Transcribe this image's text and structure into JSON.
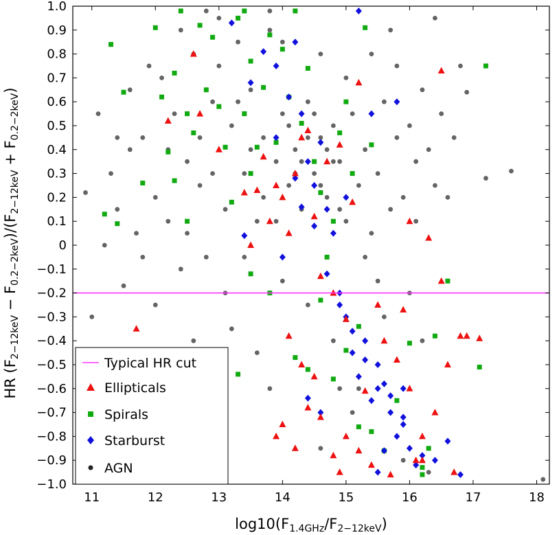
{
  "chart_data": {
    "type": "scatter",
    "xlabel_parts": [
      "log10(F",
      "1.4GHz",
      "/F",
      "2−12keV",
      ")"
    ],
    "ylabel_parts": [
      "HR (F",
      "2−12keV",
      " − F",
      "0.2−2keV",
      ")/(F",
      "2−12keV",
      " + F",
      "0.2−2keV",
      ")"
    ],
    "xlim": [
      10.7,
      18.2
    ],
    "ylim": [
      -1.0,
      1.0
    ],
    "xticks": [
      11,
      12,
      13,
      14,
      15,
      16,
      17,
      18
    ],
    "yticks": [
      1.0,
      0.9,
      0.8,
      0.7,
      0.6,
      0.5,
      0.4,
      0.3,
      0.2,
      0.1,
      0,
      -0.1,
      -0.2,
      -0.3,
      -0.4,
      -0.5,
      -0.6,
      -0.7,
      -0.8,
      -0.9,
      -1.0
    ],
    "ytick_labels": [
      "1.0",
      "0.9",
      "0.8",
      "0.7",
      "0.6",
      "0.5",
      "0.4",
      "0.3",
      "0.2",
      "0.1",
      "0",
      "−0.1",
      "−0.2",
      "−0.3",
      "−0.4",
      "−0.5",
      "−0.6",
      "−0.7",
      "−0.8",
      "−0.9",
      "−1.0"
    ],
    "grid": false,
    "legend_position": "lower-left",
    "hr_cut": {
      "name": "Typical HR cut",
      "y": -0.2,
      "color": "#ff33ff"
    },
    "series": [
      {
        "name": "Ellipticals",
        "marker": "triangle",
        "color": "#ee1111",
        "points": [
          [
            11.7,
            -0.35
          ],
          [
            12.2,
            0.52
          ],
          [
            12.5,
            -0.68
          ],
          [
            12.6,
            0.8
          ],
          [
            12.7,
            0.55
          ],
          [
            13.0,
            0.4
          ],
          [
            13.4,
            0.22
          ],
          [
            13.5,
            0.0
          ],
          [
            13.6,
            0.23
          ],
          [
            13.7,
            0.37
          ],
          [
            13.8,
            0.1
          ],
          [
            13.9,
            0.25
          ],
          [
            14.0,
            0.2
          ],
          [
            14.1,
            0.05
          ],
          [
            14.2,
            0.3
          ],
          [
            14.3,
            0.45
          ],
          [
            14.4,
            0.48
          ],
          [
            14.5,
            0.12
          ],
          [
            14.6,
            -0.13
          ],
          [
            14.7,
            0.35
          ],
          [
            14.8,
            -0.2
          ],
          [
            14.9,
            0.42
          ],
          [
            15.0,
            -0.31
          ],
          [
            15.1,
            0.18
          ],
          [
            15.2,
            0.68
          ],
          [
            14.1,
            -0.38
          ],
          [
            14.3,
            -0.5
          ],
          [
            14.5,
            -0.55
          ],
          [
            14.6,
            -0.72
          ],
          [
            14.8,
            -0.88
          ],
          [
            14.9,
            -0.95
          ],
          [
            15.0,
            -0.8
          ],
          [
            15.2,
            -0.86
          ],
          [
            15.3,
            -0.61
          ],
          [
            15.4,
            -0.92
          ],
          [
            15.6,
            -0.4
          ],
          [
            15.7,
            -0.96
          ],
          [
            15.8,
            -0.48
          ],
          [
            15.9,
            -0.27
          ],
          [
            16.0,
            -0.6
          ],
          [
            16.1,
            -0.9
          ],
          [
            16.2,
            -0.8
          ],
          [
            16.3,
            0.03
          ],
          [
            16.4,
            -0.7
          ],
          [
            16.5,
            -0.15
          ],
          [
            16.6,
            -0.5
          ],
          [
            16.8,
            -0.38
          ],
          [
            16.5,
            0.73
          ],
          [
            16.2,
            -0.9
          ],
          [
            14.0,
            -0.75
          ],
          [
            14.2,
            -0.85
          ],
          [
            13.9,
            -0.8
          ],
          [
            14.4,
            -0.68
          ],
          [
            16.0,
            0.1
          ],
          [
            16.7,
            -0.95
          ],
          [
            17.1,
            -0.39
          ],
          [
            16.9,
            -0.38
          ],
          [
            15.5,
            -0.25
          ]
        ]
      },
      {
        "name": "Spirals",
        "marker": "square",
        "color": "#11aa11",
        "points": [
          [
            11.2,
            0.13
          ],
          [
            11.3,
            0.84
          ],
          [
            11.4,
            0.09
          ],
          [
            11.5,
            0.64
          ],
          [
            11.8,
            0.26
          ],
          [
            12.0,
            0.91
          ],
          [
            12.1,
            0.62
          ],
          [
            12.2,
            0.39
          ],
          [
            12.3,
            0.72
          ],
          [
            12.4,
            0.98
          ],
          [
            12.5,
            0.55
          ],
          [
            12.6,
            0.47
          ],
          [
            12.7,
            0.92
          ],
          [
            12.8,
            0.65
          ],
          [
            12.9,
            0.87
          ],
          [
            13.0,
            0.58
          ],
          [
            13.1,
            0.41
          ],
          [
            13.2,
            0.18
          ],
          [
            13.3,
            0.95
          ],
          [
            13.4,
            0.55
          ],
          [
            13.5,
            0.77
          ],
          [
            13.6,
            0.41
          ],
          [
            13.7,
            0.66
          ],
          [
            13.8,
            0.88
          ],
          [
            13.9,
            0.43
          ],
          [
            14.0,
            0.82
          ],
          [
            14.1,
            0.62
          ],
          [
            14.2,
            0.98
          ],
          [
            14.3,
            0.51
          ],
          [
            14.4,
            0.74
          ],
          [
            14.5,
            0.35
          ],
          [
            14.6,
            0.22
          ],
          [
            14.7,
            -0.05
          ],
          [
            14.8,
            0.1
          ],
          [
            14.9,
            0.47
          ],
          [
            15.0,
            0.6
          ],
          [
            15.1,
            0.3
          ],
          [
            15.2,
            -0.34
          ],
          [
            15.3,
            0.91
          ],
          [
            15.4,
            0.42
          ],
          [
            13.3,
            -0.54
          ],
          [
            13.5,
            -0.12
          ],
          [
            13.8,
            -0.2
          ],
          [
            14.2,
            -0.47
          ],
          [
            14.4,
            -0.52
          ],
          [
            14.6,
            -0.23
          ],
          [
            14.8,
            -0.56
          ],
          [
            15.0,
            -0.44
          ],
          [
            15.2,
            -0.76
          ],
          [
            15.4,
            -0.78
          ],
          [
            15.6,
            -0.86
          ],
          [
            15.8,
            -0.65
          ],
          [
            16.0,
            -0.41
          ],
          [
            16.2,
            -0.93
          ],
          [
            16.3,
            -0.85
          ],
          [
            16.4,
            -0.38
          ],
          [
            16.6,
            -0.15
          ],
          [
            17.1,
            -0.51
          ],
          [
            17.2,
            0.75
          ],
          [
            16.2,
            -0.96
          ],
          [
            12.3,
            0.27
          ],
          [
            12.5,
            0.1
          ],
          [
            13.4,
            0.98
          ],
          [
            13.5,
            0.3
          ]
        ]
      },
      {
        "name": "Starburst",
        "marker": "diamond",
        "color": "#1111dd",
        "points": [
          [
            13.2,
            0.93
          ],
          [
            13.4,
            0.04
          ],
          [
            13.5,
            0.68
          ],
          [
            13.7,
            0.81
          ],
          [
            13.9,
            0.45
          ],
          [
            14.0,
            -0.05
          ],
          [
            14.2,
            0.28
          ],
          [
            14.3,
            0.55
          ],
          [
            14.4,
            0.35
          ],
          [
            14.5,
            0.25
          ],
          [
            14.6,
            0.43
          ],
          [
            14.7,
            0.15
          ],
          [
            14.8,
            0.05
          ],
          [
            14.9,
            -0.2
          ],
          [
            15.0,
            -0.3
          ],
          [
            15.1,
            -0.45
          ],
          [
            15.2,
            -0.55
          ],
          [
            15.3,
            -0.4
          ],
          [
            15.4,
            -0.65
          ],
          [
            15.5,
            -0.5
          ],
          [
            15.6,
            -0.58
          ],
          [
            15.7,
            -0.7
          ],
          [
            15.8,
            -0.8
          ],
          [
            15.9,
            -0.75
          ],
          [
            16.0,
            -0.85
          ],
          [
            16.1,
            -0.92
          ],
          [
            16.2,
            -0.88
          ],
          [
            16.4,
            -0.9
          ],
          [
            16.6,
            -0.82
          ],
          [
            16.8,
            -0.96
          ],
          [
            14.1,
            0.62
          ],
          [
            14.3,
            0.16
          ],
          [
            14.5,
            0.08
          ],
          [
            14.7,
            -0.12
          ],
          [
            14.9,
            -0.25
          ],
          [
            15.1,
            -0.36
          ],
          [
            15.3,
            -0.48
          ],
          [
            15.5,
            -0.6
          ],
          [
            15.7,
            -0.63
          ],
          [
            15.9,
            -0.72
          ],
          [
            14.4,
            -0.64
          ],
          [
            14.6,
            -0.7
          ],
          [
            15.2,
            0.98
          ],
          [
            15.4,
            0.55
          ],
          [
            15.6,
            -0.86
          ],
          [
            15.8,
            0.6
          ],
          [
            15.9,
            -0.6
          ],
          [
            13.9,
            0.75
          ],
          [
            14.2,
            0.85
          ],
          [
            15.0,
            0.2
          ],
          [
            15.5,
            -0.95
          ]
        ]
      },
      {
        "name": "AGN",
        "marker": "circle",
        "color": "#222222",
        "points": [
          [
            10.9,
            0.22
          ],
          [
            11.0,
            -0.3
          ],
          [
            11.2,
            0.0
          ],
          [
            11.3,
            0.3
          ],
          [
            11.4,
            0.15
          ],
          [
            11.5,
            -0.17
          ],
          [
            11.6,
            0.4
          ],
          [
            11.7,
            0.05
          ],
          [
            11.8,
            0.45
          ],
          [
            11.9,
            -0.5
          ],
          [
            12.0,
            0.2
          ],
          [
            12.1,
            0.7
          ],
          [
            12.2,
            0.1
          ],
          [
            12.3,
            0.55
          ],
          [
            12.4,
            -0.1
          ],
          [
            12.5,
            0.35
          ],
          [
            12.6,
            0.8
          ],
          [
            12.7,
            0.25
          ],
          [
            12.8,
            -0.05
          ],
          [
            12.9,
            0.6
          ],
          [
            13.0,
            0.95
          ],
          [
            13.1,
            0.15
          ],
          [
            13.2,
            0.5
          ],
          [
            13.3,
            0.85
          ],
          [
            13.4,
            0.3
          ],
          [
            13.5,
            0.65
          ],
          [
            13.6,
            0.1
          ],
          [
            13.7,
            0.45
          ],
          [
            13.8,
            0.9
          ],
          [
            13.9,
            0.35
          ],
          [
            14.0,
            0.55
          ],
          [
            14.1,
            0.25
          ],
          [
            14.2,
            0.4
          ],
          [
            14.3,
            0.15
          ],
          [
            14.4,
            0.6
          ],
          [
            14.5,
            0.3
          ],
          [
            14.6,
            0.45
          ],
          [
            14.7,
            0.2
          ],
          [
            14.8,
            0.5
          ],
          [
            14.9,
            0.35
          ],
          [
            15.0,
            0.1
          ],
          [
            15.1,
            0.55
          ],
          [
            15.2,
            0.25
          ],
          [
            15.3,
            0.4
          ],
          [
            15.4,
            0.05
          ],
          [
            15.5,
            0.3
          ],
          [
            15.6,
            0.6
          ],
          [
            15.7,
            0.15
          ],
          [
            15.8,
            0.45
          ],
          [
            15.9,
            0.2
          ],
          [
            16.0,
            0.5
          ],
          [
            16.1,
            0.35
          ],
          [
            16.2,
            0.65
          ],
          [
            16.3,
            0.4
          ],
          [
            16.4,
            0.25
          ],
          [
            16.5,
            0.55
          ],
          [
            16.7,
            0.45
          ],
          [
            16.9,
            0.64
          ],
          [
            17.2,
            0.28
          ],
          [
            17.6,
            0.31
          ],
          [
            18.1,
            -0.98
          ],
          [
            11.6,
            0.65
          ],
          [
            12.0,
            -0.25
          ],
          [
            12.4,
            0.9
          ],
          [
            12.8,
            0.98
          ],
          [
            13.2,
            -0.35
          ],
          [
            13.6,
            -0.45
          ],
          [
            13.8,
            0.98
          ],
          [
            14.0,
            -0.15
          ],
          [
            14.2,
            0.98
          ],
          [
            14.4,
            -0.25
          ],
          [
            14.6,
            0.8
          ],
          [
            14.8,
            -0.4
          ],
          [
            15.0,
            0.7
          ],
          [
            15.2,
            -0.6
          ],
          [
            15.4,
            0.8
          ],
          [
            15.6,
            -0.3
          ],
          [
            15.8,
            0.75
          ],
          [
            16.0,
            -0.2
          ],
          [
            16.2,
            -0.4
          ],
          [
            16.4,
            0.95
          ],
          [
            13.5,
            0.4
          ],
          [
            13.7,
            0.2
          ],
          [
            13.9,
            0.1
          ],
          [
            14.1,
            0.5
          ],
          [
            14.3,
            0.35
          ],
          [
            14.5,
            0.55
          ],
          [
            14.7,
            0.4
          ],
          [
            14.9,
            0.15
          ],
          [
            15.1,
            0.3
          ],
          [
            14.2,
            0.3
          ],
          [
            14.4,
            0.45
          ],
          [
            14.6,
            0.25
          ],
          [
            14.8,
            0.35
          ],
          [
            12.2,
            0.4
          ],
          [
            12.5,
            0.05
          ],
          [
            12.9,
            0.3
          ],
          [
            13.1,
            -0.2
          ],
          [
            13.3,
            0.6
          ],
          [
            11.8,
            -0.05
          ],
          [
            11.4,
            0.45
          ],
          [
            12.6,
            -0.4
          ],
          [
            13.0,
            0.75
          ],
          [
            13.4,
            -0.05
          ],
          [
            14.0,
            0.85
          ],
          [
            15.3,
            -0.05
          ],
          [
            15.7,
            0.9
          ],
          [
            16.1,
            0.1
          ],
          [
            16.6,
            0.2
          ],
          [
            14.6,
            -0.85
          ],
          [
            14.9,
            -0.6
          ],
          [
            15.1,
            -0.7
          ],
          [
            15.5,
            -0.15
          ],
          [
            13.8,
            -0.6
          ],
          [
            12.7,
            0.45
          ],
          [
            11.9,
            0.75
          ],
          [
            16.3,
            -0.95
          ],
          [
            15.9,
            -0.9
          ],
          [
            16.8,
            0.75
          ],
          [
            11.1,
            0.55
          ]
        ]
      }
    ]
  }
}
